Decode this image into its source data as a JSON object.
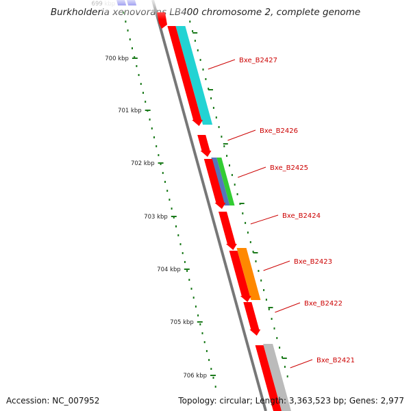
{
  "title": "Burkholderia xenovorans LB400 chromosome 2, complete genome",
  "footer": {
    "accession": "Accession: NC_007952",
    "summary": "Topology: circular; Length: 3,363,523 bp; Genes: 2,977"
  },
  "ruler": [
    {
      "label": "699 kbp",
      "faded": true
    },
    {
      "label": "700 kbp"
    },
    {
      "label": "701 kbp"
    },
    {
      "label": "702 kbp"
    },
    {
      "label": "703 kbp"
    },
    {
      "label": "704 kbp"
    },
    {
      "label": "705 kbp"
    },
    {
      "label": "706 kbp"
    }
  ],
  "genes": [
    {
      "label": "Bxe_B2427",
      "color": "#ff0000"
    },
    {
      "label": "Bxe_B2426",
      "color": "#ff0000"
    },
    {
      "label": "Bxe_B2425",
      "color": "#ff0000"
    },
    {
      "label": "Bxe_B2424",
      "color": "#ff0000"
    },
    {
      "label": "Bxe_B2423",
      "color": "#ff0000"
    },
    {
      "label": "Bxe_B2422",
      "color": "#ff0000"
    },
    {
      "label": "Bxe_B2421",
      "color": "#ff0000"
    }
  ],
  "colors": {
    "backbone": "#777777",
    "label": "#cc0000",
    "tick": "#1a7a1a",
    "cyan": "#22d3d3",
    "blue": "#5577bb",
    "green": "#33cc33",
    "orange": "#ff8800",
    "gray": "#bbbbbb",
    "darkblue": "#1111dd"
  }
}
